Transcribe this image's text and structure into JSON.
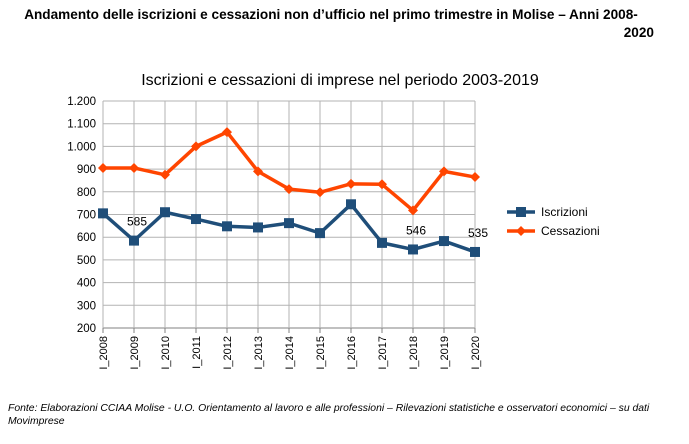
{
  "page": {
    "title_line1": "Andamento delle iscrizioni e cessazioni non d’ufficio nel primo trimestre in Molise – Anni 2008-",
    "title_line2": "2020",
    "source": "Fonte: Elaborazioni CCIAA Molise - U.O. Orientamento al lavoro e alle professioni – Rilevazioni statistiche e osservatori economici – su dati Movimprese"
  },
  "chart_data": {
    "type": "line",
    "title": "Iscrizioni e cessazioni di imprese nel periodo 2003-2019",
    "categories": [
      "I_2008",
      "I_2009",
      "I_2010",
      "I_2011",
      "I_2012",
      "I_2013",
      "I_2014",
      "I_2015",
      "I_2016",
      "I_2017",
      "I_2018",
      "I_2019",
      "I_2020"
    ],
    "series": [
      {
        "name": "Iscrizioni",
        "color": "#1f4e79",
        "marker": "square",
        "values": [
          705,
          585,
          710,
          680,
          648,
          643,
          662,
          618,
          745,
          575,
          546,
          583,
          535
        ]
      },
      {
        "name": "Cessazioni",
        "color": "#ff4500",
        "marker": "diamond",
        "values": [
          905,
          905,
          875,
          1000,
          1063,
          890,
          812,
          798,
          835,
          833,
          718,
          890,
          865
        ]
      }
    ],
    "y_ticks": [
      "200",
      "300",
      "400",
      "500",
      "600",
      "700",
      "800",
      "900",
      "1.000",
      "1.100",
      "1.200"
    ],
    "ylim": [
      200,
      1200
    ],
    "grid": true,
    "legend_position": "right",
    "data_labels": [
      {
        "series": 0,
        "index": 1,
        "text": "585"
      },
      {
        "series": 0,
        "index": 10,
        "text": "546"
      },
      {
        "series": 0,
        "index": 12,
        "text": "535"
      }
    ]
  }
}
